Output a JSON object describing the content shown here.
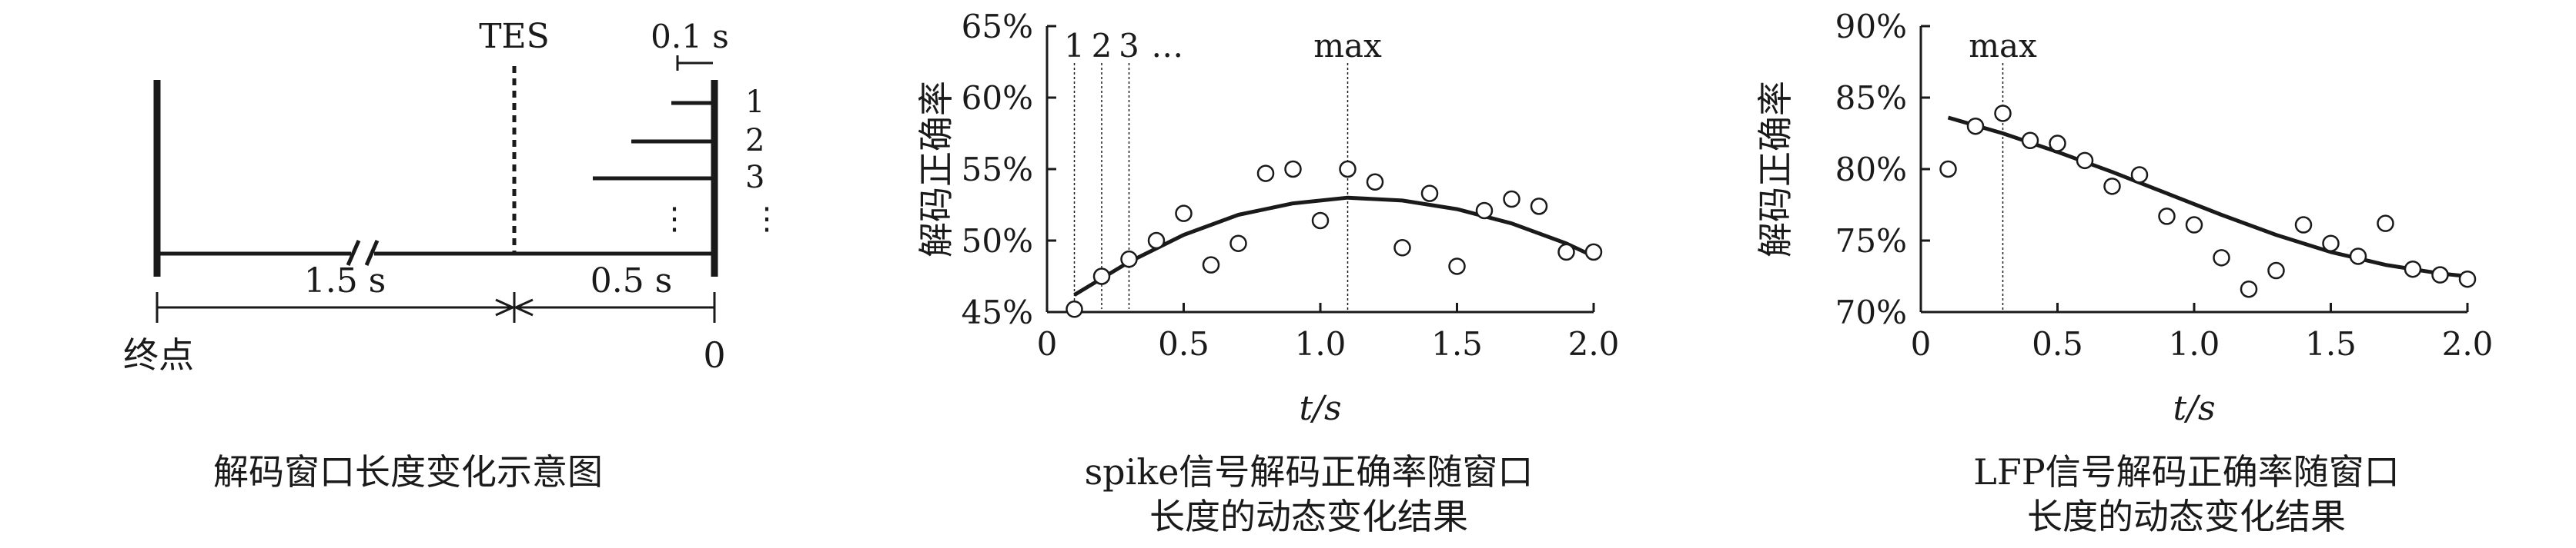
{
  "panels": {
    "schematic": {
      "caption": "解码窗口长度变化示意图",
      "labels": {
        "tes": "TES",
        "step": "0.1 s",
        "w1": "1",
        "w2": "2",
        "w3": "3",
        "wdots": "⋮",
        "wmore": "⋯",
        "interval_long": "1.5 s",
        "interval_short": "0.5 s",
        "end_label": "终点",
        "zero_label": "0"
      }
    }
  },
  "chart_data": [
    {
      "type": "scatter",
      "caption_lines": [
        "spike信号解码正确率随窗口",
        "长度的动态变化结果"
      ],
      "xlabel": "t/s",
      "ylabel": "解码正确率",
      "xlim": [
        0,
        2.0
      ],
      "ylim": [
        45,
        65
      ],
      "x_ticks": [
        "0",
        "0.5",
        "1.0",
        "1.5",
        "2.0"
      ],
      "y_ticks": [
        "45%",
        "50%",
        "55%",
        "60%",
        "65%"
      ],
      "window_labels": [
        "1",
        "2",
        "3",
        "…"
      ],
      "window_marks": [
        0.1,
        0.2,
        0.3
      ],
      "max_label": "max",
      "max_x": 1.1,
      "points": [
        {
          "x": 0.1,
          "y": 45.2
        },
        {
          "x": 0.2,
          "y": 47.5
        },
        {
          "x": 0.3,
          "y": 48.7
        },
        {
          "x": 0.4,
          "y": 50.0
        },
        {
          "x": 0.5,
          "y": 51.9
        },
        {
          "x": 0.6,
          "y": 48.3
        },
        {
          "x": 0.7,
          "y": 49.8
        },
        {
          "x": 0.8,
          "y": 54.7
        },
        {
          "x": 0.9,
          "y": 55.0
        },
        {
          "x": 1.0,
          "y": 51.4
        },
        {
          "x": 1.1,
          "y": 55.0
        },
        {
          "x": 1.2,
          "y": 54.1
        },
        {
          "x": 1.3,
          "y": 49.5
        },
        {
          "x": 1.4,
          "y": 53.3
        },
        {
          "x": 1.5,
          "y": 48.2
        },
        {
          "x": 1.6,
          "y": 52.1
        },
        {
          "x": 1.7,
          "y": 52.9
        },
        {
          "x": 1.8,
          "y": 52.4
        },
        {
          "x": 1.9,
          "y": 49.2
        },
        {
          "x": 2.0,
          "y": 49.2
        }
      ],
      "fit": [
        {
          "x": 0.1,
          "y": 46.2
        },
        {
          "x": 0.3,
          "y": 48.5
        },
        {
          "x": 0.5,
          "y": 50.4
        },
        {
          "x": 0.7,
          "y": 51.8
        },
        {
          "x": 0.9,
          "y": 52.6
        },
        {
          "x": 1.1,
          "y": 53.0
        },
        {
          "x": 1.3,
          "y": 52.8
        },
        {
          "x": 1.5,
          "y": 52.2
        },
        {
          "x": 1.7,
          "y": 51.2
        },
        {
          "x": 1.9,
          "y": 49.8
        },
        {
          "x": 2.0,
          "y": 48.9
        }
      ]
    },
    {
      "type": "scatter",
      "caption_lines": [
        "LFP信号解码正确率随窗口",
        "长度的动态变化结果"
      ],
      "xlabel": "t/s",
      "ylabel": "解码正确率",
      "xlim": [
        0,
        2.0
      ],
      "ylim": [
        70,
        90
      ],
      "x_ticks": [
        "0",
        "0.5",
        "1.0",
        "1.5",
        "2.0"
      ],
      "y_ticks": [
        "70%",
        "75%",
        "80%",
        "85%",
        "90%"
      ],
      "max_label": "max",
      "max_x": 0.3,
      "points": [
        {
          "x": 0.1,
          "y": 80.0
        },
        {
          "x": 0.2,
          "y": 83.0
        },
        {
          "x": 0.3,
          "y": 83.9
        },
        {
          "x": 0.4,
          "y": 82.0
        },
        {
          "x": 0.5,
          "y": 81.8
        },
        {
          "x": 0.6,
          "y": 80.6
        },
        {
          "x": 0.7,
          "y": 78.8
        },
        {
          "x": 0.8,
          "y": 79.6
        },
        {
          "x": 0.9,
          "y": 76.7
        },
        {
          "x": 1.0,
          "y": 76.1
        },
        {
          "x": 1.1,
          "y": 73.8
        },
        {
          "x": 1.2,
          "y": 71.6
        },
        {
          "x": 1.3,
          "y": 72.9
        },
        {
          "x": 1.4,
          "y": 76.1
        },
        {
          "x": 1.5,
          "y": 74.8
        },
        {
          "x": 1.6,
          "y": 73.9
        },
        {
          "x": 1.7,
          "y": 76.2
        },
        {
          "x": 1.8,
          "y": 73.0
        },
        {
          "x": 1.9,
          "y": 72.6
        },
        {
          "x": 2.0,
          "y": 72.3
        }
      ],
      "fit": [
        {
          "x": 0.1,
          "y": 83.6
        },
        {
          "x": 0.3,
          "y": 82.5
        },
        {
          "x": 0.5,
          "y": 81.2
        },
        {
          "x": 0.7,
          "y": 79.8
        },
        {
          "x": 0.9,
          "y": 78.3
        },
        {
          "x": 1.1,
          "y": 76.8
        },
        {
          "x": 1.3,
          "y": 75.4
        },
        {
          "x": 1.5,
          "y": 74.2
        },
        {
          "x": 1.7,
          "y": 73.3
        },
        {
          "x": 1.9,
          "y": 72.7
        },
        {
          "x": 2.0,
          "y": 72.5
        }
      ]
    }
  ]
}
